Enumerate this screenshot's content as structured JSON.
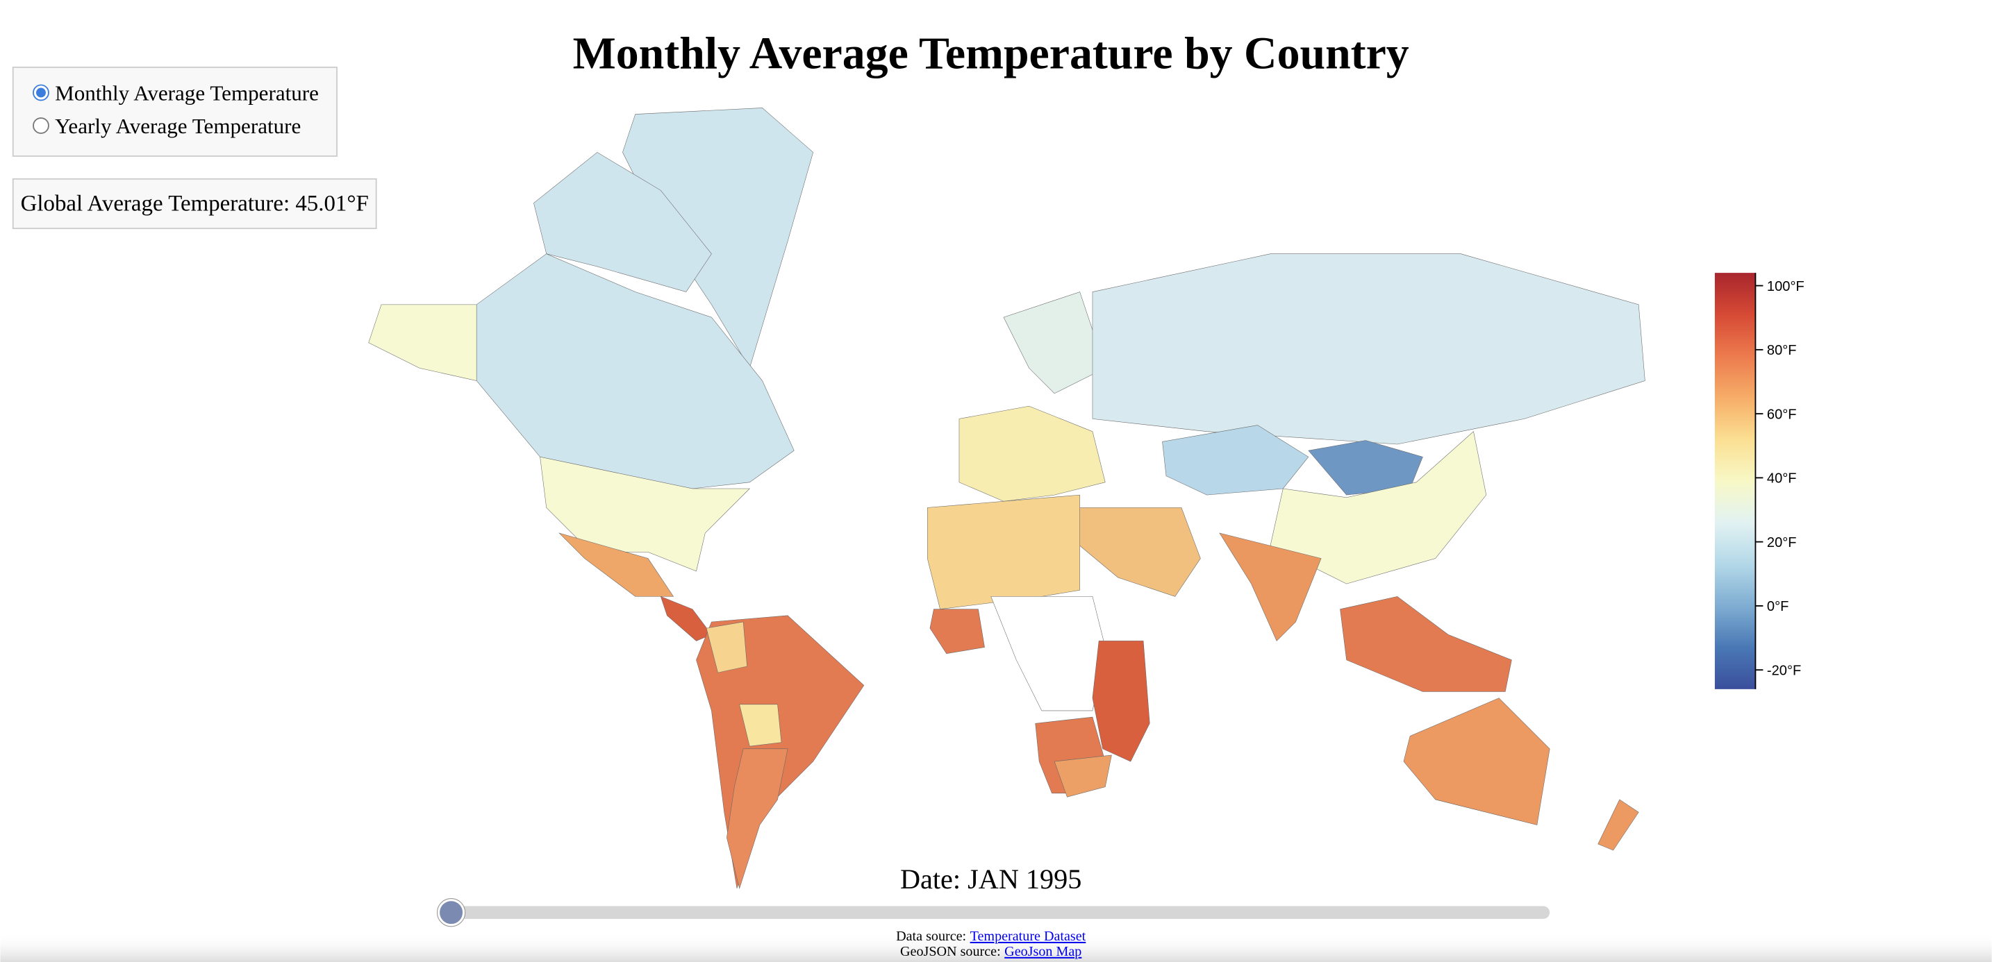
{
  "title": "Monthly Average Temperature by Country",
  "controls": {
    "options": [
      "Monthly Average Temperature",
      "Yearly Average Temperature"
    ],
    "selected": 0
  },
  "global_average": "Global Average Temperature: 45.01°F",
  "legend": {
    "range": [
      -26,
      104
    ],
    "ticks": [
      {
        "value": 100,
        "label": "100°F"
      },
      {
        "value": 80,
        "label": "80°F"
      },
      {
        "value": 60,
        "label": "60°F"
      },
      {
        "value": 40,
        "label": "40°F"
      },
      {
        "value": 20,
        "label": "20°F"
      },
      {
        "value": 0,
        "label": "0°F"
      },
      {
        "value": -20,
        "label": "-20°F"
      }
    ],
    "colors": [
      "#3a4f9c",
      "#4a78b5",
      "#7fadd2",
      "#b3d8e8",
      "#e2f2f2",
      "#f8f8c6",
      "#fbdf92",
      "#f6ad68",
      "#ec7b4e",
      "#d64a35",
      "#a8262d"
    ]
  },
  "date": "Date: JAN 1995",
  "sources": {
    "data_prefix": "Data source:",
    "data_link": "Temperature Dataset",
    "geo_prefix": "GeoJSON source:",
    "geo_link": "GeoJson Map"
  }
}
